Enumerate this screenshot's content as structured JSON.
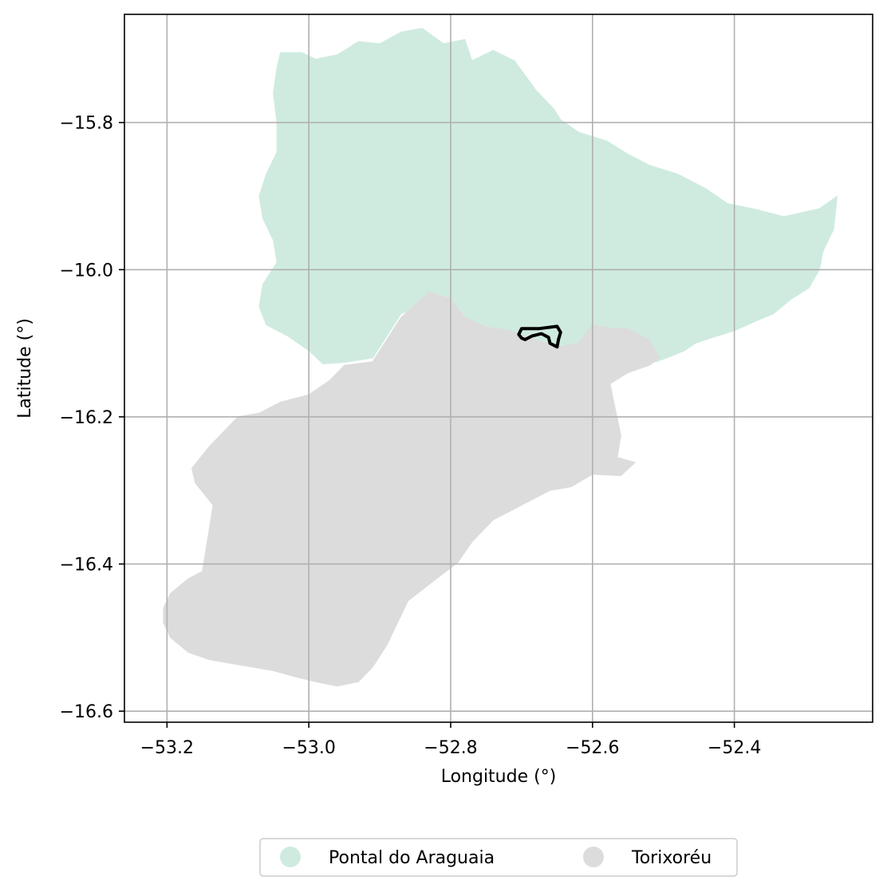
{
  "chart_data": {
    "type": "map",
    "xlabel": "Longitude (°)",
    "ylabel": "Latitude (°)",
    "xlim": [
      -53.26,
      -52.205
    ],
    "ylim": [
      -16.615,
      -15.653
    ],
    "grid": true,
    "x_ticks": [
      {
        "value": -53.2,
        "label": "−53.2"
      },
      {
        "value": -53.0,
        "label": "−53.0"
      },
      {
        "value": -52.8,
        "label": "−52.8"
      },
      {
        "value": -52.6,
        "label": "−52.6"
      },
      {
        "value": -52.4,
        "label": "−52.4"
      }
    ],
    "y_ticks": [
      {
        "value": -15.8,
        "label": "−15.8"
      },
      {
        "value": -16.0,
        "label": "−16.0"
      },
      {
        "value": -16.2,
        "label": "−16.2"
      },
      {
        "value": -16.4,
        "label": "−16.4"
      },
      {
        "value": -16.6,
        "label": "−16.6"
      }
    ],
    "legend_position": "bottom-center",
    "regions": [
      {
        "name": "Pontal do Araguaia",
        "color": "#cfebdf",
        "polygon": [
          [
            -53.04,
            -15.705
          ],
          [
            -53.01,
            -15.705
          ],
          [
            -52.99,
            -15.714
          ],
          [
            -52.96,
            -15.708
          ],
          [
            -52.93,
            -15.69
          ],
          [
            -52.9,
            -15.693
          ],
          [
            -52.87,
            -15.677
          ],
          [
            -52.84,
            -15.672
          ],
          [
            -52.81,
            -15.693
          ],
          [
            -52.78,
            -15.687
          ],
          [
            -52.77,
            -15.716
          ],
          [
            -52.74,
            -15.702
          ],
          [
            -52.71,
            -15.716
          ],
          [
            -52.68,
            -15.756
          ],
          [
            -52.655,
            -15.781
          ],
          [
            -52.645,
            -15.796
          ],
          [
            -52.62,
            -15.813
          ],
          [
            -52.58,
            -15.825
          ],
          [
            -52.55,
            -15.843
          ],
          [
            -52.52,
            -15.858
          ],
          [
            -52.48,
            -15.87
          ],
          [
            -52.44,
            -15.89
          ],
          [
            -52.41,
            -15.91
          ],
          [
            -52.37,
            -15.918
          ],
          [
            -52.33,
            -15.928
          ],
          [
            -52.28,
            -15.917
          ],
          [
            -52.255,
            -15.9
          ],
          [
            -52.26,
            -15.945
          ],
          [
            -52.275,
            -15.975
          ],
          [
            -52.28,
            -16.0
          ],
          [
            -52.295,
            -16.025
          ],
          [
            -52.32,
            -16.04
          ],
          [
            -52.345,
            -16.06
          ],
          [
            -52.37,
            -16.07
          ],
          [
            -52.4,
            -16.083
          ],
          [
            -52.43,
            -16.092
          ],
          [
            -52.455,
            -16.1
          ],
          [
            -52.47,
            -16.11
          ],
          [
            -52.49,
            -16.118
          ],
          [
            -52.51,
            -16.125
          ],
          [
            -52.53,
            -16.12
          ],
          [
            -52.56,
            -16.103
          ],
          [
            -52.59,
            -16.095
          ],
          [
            -52.62,
            -16.1
          ],
          [
            -52.65,
            -16.105
          ],
          [
            -52.68,
            -16.095
          ],
          [
            -52.72,
            -16.082
          ],
          [
            -52.75,
            -16.078
          ],
          [
            -52.78,
            -16.065
          ],
          [
            -52.8,
            -16.05
          ],
          [
            -52.83,
            -16.045
          ],
          [
            -52.87,
            -16.06
          ],
          [
            -52.89,
            -16.09
          ],
          [
            -52.91,
            -16.12
          ],
          [
            -52.95,
            -16.126
          ],
          [
            -52.98,
            -16.128
          ],
          [
            -53.0,
            -16.11
          ],
          [
            -53.03,
            -16.09
          ],
          [
            -53.06,
            -16.075
          ],
          [
            -53.07,
            -16.05
          ],
          [
            -53.065,
            -16.02
          ],
          [
            -53.045,
            -15.99
          ],
          [
            -53.05,
            -15.96
          ],
          [
            -53.065,
            -15.93
          ],
          [
            -53.07,
            -15.9
          ],
          [
            -53.06,
            -15.87
          ],
          [
            -53.045,
            -15.84
          ],
          [
            -53.045,
            -15.8
          ],
          [
            -53.05,
            -15.76
          ],
          [
            -53.045,
            -15.725
          ]
        ]
      },
      {
        "name": "Torixoréu",
        "color": "#dcdcdc",
        "polygon": [
          [
            -52.83,
            -16.03
          ],
          [
            -52.8,
            -16.04
          ],
          [
            -52.78,
            -16.065
          ],
          [
            -52.75,
            -16.078
          ],
          [
            -52.72,
            -16.082
          ],
          [
            -52.68,
            -16.095
          ],
          [
            -52.65,
            -16.105
          ],
          [
            -52.62,
            -16.1
          ],
          [
            -52.6,
            -16.075
          ],
          [
            -52.57,
            -16.08
          ],
          [
            -52.55,
            -16.08
          ],
          [
            -52.52,
            -16.095
          ],
          [
            -52.505,
            -16.12
          ],
          [
            -52.52,
            -16.13
          ],
          [
            -52.55,
            -16.14
          ],
          [
            -52.575,
            -16.155
          ],
          [
            -52.57,
            -16.18
          ],
          [
            -52.56,
            -16.225
          ],
          [
            -52.565,
            -16.255
          ],
          [
            -52.54,
            -16.262
          ],
          [
            -52.56,
            -16.28
          ],
          [
            -52.6,
            -16.278
          ],
          [
            -52.63,
            -16.295
          ],
          [
            -52.66,
            -16.3
          ],
          [
            -52.7,
            -16.32
          ],
          [
            -52.74,
            -16.34
          ],
          [
            -52.77,
            -16.37
          ],
          [
            -52.79,
            -16.398
          ],
          [
            -52.82,
            -16.42
          ],
          [
            -52.86,
            -16.45
          ],
          [
            -52.875,
            -16.48
          ],
          [
            -52.89,
            -16.51
          ],
          [
            -52.91,
            -16.54
          ],
          [
            -52.93,
            -16.56
          ],
          [
            -52.96,
            -16.566
          ],
          [
            -52.99,
            -16.56
          ],
          [
            -53.02,
            -16.553
          ],
          [
            -53.05,
            -16.545
          ],
          [
            -53.08,
            -16.54
          ],
          [
            -53.11,
            -16.535
          ],
          [
            -53.14,
            -16.53
          ],
          [
            -53.17,
            -16.52
          ],
          [
            -53.195,
            -16.5
          ],
          [
            -53.205,
            -16.48
          ],
          [
            -53.205,
            -16.46
          ],
          [
            -53.195,
            -16.44
          ],
          [
            -53.17,
            -16.42
          ],
          [
            -53.15,
            -16.41
          ],
          [
            -53.145,
            -16.38
          ],
          [
            -53.14,
            -16.35
          ],
          [
            -53.135,
            -16.32
          ],
          [
            -53.16,
            -16.29
          ],
          [
            -53.165,
            -16.27
          ],
          [
            -53.14,
            -16.24
          ],
          [
            -53.12,
            -16.22
          ],
          [
            -53.1,
            -16.2
          ],
          [
            -53.07,
            -16.195
          ],
          [
            -53.04,
            -16.18
          ],
          [
            -53.0,
            -16.17
          ],
          [
            -52.97,
            -16.15
          ],
          [
            -52.95,
            -16.13
          ],
          [
            -52.91,
            -16.125
          ],
          [
            -52.89,
            -16.095
          ],
          [
            -52.87,
            -16.065
          ]
        ]
      }
    ],
    "study_area": {
      "name": "",
      "color": "#000000",
      "polygon": [
        [
          -52.7,
          -16.08
        ],
        [
          -52.675,
          -16.08
        ],
        [
          -52.65,
          -16.077
        ],
        [
          -52.645,
          -16.085
        ],
        [
          -52.648,
          -16.095
        ],
        [
          -52.65,
          -16.105
        ],
        [
          -52.66,
          -16.1
        ],
        [
          -52.662,
          -16.092
        ],
        [
          -52.672,
          -16.087
        ],
        [
          -52.685,
          -16.09
        ],
        [
          -52.695,
          -16.095
        ],
        [
          -52.7,
          -16.093
        ],
        [
          -52.704,
          -16.088
        ]
      ]
    }
  }
}
